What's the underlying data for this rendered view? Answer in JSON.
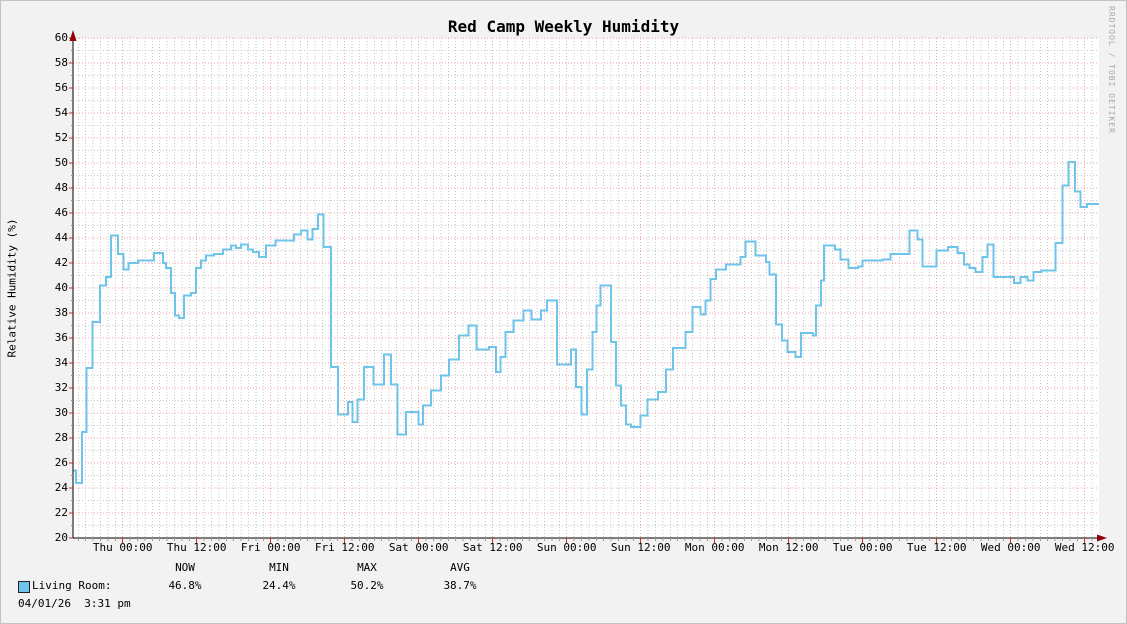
{
  "title": "Red Camp Weekly Humidity",
  "watermark": "RRDTOOL / TOBI OETIKER",
  "legend": {
    "headers": [
      "NOW",
      "MIN",
      "MAX",
      "AVG"
    ],
    "series_label": "Living Room:",
    "values": [
      "46.8%",
      "24.4%",
      "50.2%",
      "38.7%"
    ],
    "timestamp": "04/01/26  3:31 pm"
  },
  "colors": {
    "line": "#6fc4ec",
    "swatch": "#6fc4ec",
    "major_grid": "#f0a3a3",
    "minor_grid": "#c9c9c9",
    "axis": "#000000",
    "arrow": "#92000a",
    "plot_background": "#ffffff",
    "canvas_background": "#f2f2f2",
    "watermark_text": "#aaaaaa"
  },
  "chart_data": {
    "type": "line",
    "title": "Red Camp Weekly Humidity",
    "ylabel": "Relative Humidity (%)",
    "xlabel": "",
    "ylim": [
      20,
      60
    ],
    "y_major_step": 2,
    "y_minor_step": 1,
    "grid": true,
    "legend_position": "bottom",
    "x_tick_labels": [
      "Thu 00:00",
      "Thu 12:00",
      "Fri 00:00",
      "Fri 12:00",
      "Sat 00:00",
      "Sat 12:00",
      "Sun 00:00",
      "Sun 12:00",
      "Mon 00:00",
      "Mon 12:00",
      "Tue 00:00",
      "Tue 12:00",
      "Wed 00:00",
      "Wed 12:00"
    ],
    "x_tick_hours": [
      0,
      12,
      24,
      36,
      48,
      60,
      72,
      84,
      96,
      108,
      120,
      132,
      144,
      156
    ],
    "x_minor_step_hours": 1.2,
    "x_range_hours": [
      -8.1,
      158.3
    ],
    "stats": {
      "now": 46.8,
      "min": 24.4,
      "max": 50.2,
      "avg": 38.7
    },
    "series": [
      {
        "name": "Living Room",
        "unit": "%",
        "style": "step-after",
        "step_points": [
          [
            -8.1,
            25.4
          ],
          [
            -7.6,
            24.4
          ],
          [
            -6.6,
            28.5
          ],
          [
            -5.9,
            33.6
          ],
          [
            -4.9,
            37.3
          ],
          [
            -3.7,
            40.2
          ],
          [
            -2.7,
            40.9
          ],
          [
            -1.9,
            44.2
          ],
          [
            -0.8,
            42.7
          ],
          [
            0.1,
            41.5
          ],
          [
            0.9,
            42.0
          ],
          [
            2.5,
            42.2
          ],
          [
            5.1,
            42.8
          ],
          [
            6.5,
            42.0
          ],
          [
            7.0,
            41.6
          ],
          [
            7.8,
            39.6
          ],
          [
            8.5,
            37.8
          ],
          [
            9.1,
            37.6
          ],
          [
            9.9,
            39.4
          ],
          [
            11.1,
            39.6
          ],
          [
            11.9,
            41.6
          ],
          [
            12.7,
            42.2
          ],
          [
            13.5,
            42.6
          ],
          [
            14.8,
            42.7
          ],
          [
            16.3,
            43.1
          ],
          [
            17.6,
            43.4
          ],
          [
            18.4,
            43.2
          ],
          [
            19.2,
            43.5
          ],
          [
            20.3,
            43.1
          ],
          [
            21.1,
            42.9
          ],
          [
            22.1,
            42.5
          ],
          [
            23.2,
            43.4
          ],
          [
            24.8,
            43.8
          ],
          [
            27.8,
            44.3
          ],
          [
            28.9,
            44.6
          ],
          [
            30.0,
            43.9
          ],
          [
            30.8,
            44.7
          ],
          [
            31.7,
            45.9
          ],
          [
            32.6,
            43.3
          ],
          [
            33.8,
            33.7
          ],
          [
            34.9,
            29.9
          ],
          [
            36.5,
            30.9
          ],
          [
            37.3,
            29.3
          ],
          [
            38.1,
            31.1
          ],
          [
            39.1,
            33.7
          ],
          [
            40.7,
            32.3
          ],
          [
            42.4,
            34.7
          ],
          [
            43.5,
            32.3
          ],
          [
            44.6,
            28.3
          ],
          [
            45.9,
            30.1
          ],
          [
            48.0,
            29.1
          ],
          [
            48.7,
            30.6
          ],
          [
            50.0,
            31.8
          ],
          [
            51.6,
            33.0
          ],
          [
            52.9,
            34.3
          ],
          [
            54.5,
            36.2
          ],
          [
            56.1,
            37.0
          ],
          [
            57.4,
            35.1
          ],
          [
            59.4,
            35.3
          ],
          [
            60.5,
            33.3
          ],
          [
            61.3,
            34.5
          ],
          [
            62.1,
            36.5
          ],
          [
            63.4,
            37.4
          ],
          [
            65.0,
            38.2
          ],
          [
            66.3,
            37.5
          ],
          [
            67.8,
            38.2
          ],
          [
            68.8,
            39.0
          ],
          [
            70.4,
            33.9
          ],
          [
            72.7,
            35.1
          ],
          [
            73.5,
            32.1
          ],
          [
            74.4,
            29.9
          ],
          [
            75.3,
            33.5
          ],
          [
            76.2,
            36.5
          ],
          [
            76.8,
            38.6
          ],
          [
            77.5,
            40.2
          ],
          [
            79.2,
            35.7
          ],
          [
            80.0,
            32.2
          ],
          [
            80.8,
            30.6
          ],
          [
            81.6,
            29.1
          ],
          [
            82.4,
            28.9
          ],
          [
            84.0,
            29.8
          ],
          [
            85.1,
            31.1
          ],
          [
            86.8,
            31.7
          ],
          [
            88.1,
            33.5
          ],
          [
            89.2,
            35.2
          ],
          [
            91.3,
            36.5
          ],
          [
            92.4,
            38.5
          ],
          [
            93.7,
            37.9
          ],
          [
            94.5,
            39.0
          ],
          [
            95.3,
            40.7
          ],
          [
            96.2,
            41.5
          ],
          [
            97.8,
            41.9
          ],
          [
            100.2,
            42.5
          ],
          [
            101.0,
            43.7
          ],
          [
            102.6,
            42.6
          ],
          [
            104.3,
            42.1
          ],
          [
            104.9,
            41.1
          ],
          [
            105.9,
            37.1
          ],
          [
            106.9,
            35.8
          ],
          [
            107.8,
            34.9
          ],
          [
            109.1,
            34.5
          ],
          [
            110.0,
            36.4
          ],
          [
            111.9,
            36.2
          ],
          [
            112.4,
            38.6
          ],
          [
            113.2,
            40.6
          ],
          [
            113.7,
            43.4
          ],
          [
            115.5,
            43.1
          ],
          [
            116.4,
            42.3
          ],
          [
            117.7,
            41.6
          ],
          [
            119.2,
            41.7
          ],
          [
            120.0,
            42.2
          ],
          [
            123.2,
            42.3
          ],
          [
            124.5,
            42.7
          ],
          [
            127.6,
            44.6
          ],
          [
            128.9,
            43.9
          ],
          [
            129.7,
            41.7
          ],
          [
            132.0,
            43.0
          ],
          [
            133.8,
            43.3
          ],
          [
            135.4,
            42.8
          ],
          [
            136.4,
            41.9
          ],
          [
            137.3,
            41.6
          ],
          [
            138.3,
            41.3
          ],
          [
            139.4,
            42.5
          ],
          [
            140.2,
            43.5
          ],
          [
            141.2,
            40.9
          ],
          [
            144.5,
            40.4
          ],
          [
            145.6,
            40.9
          ],
          [
            146.7,
            40.6
          ],
          [
            147.7,
            41.3
          ],
          [
            149.0,
            41.4
          ],
          [
            151.3,
            43.6
          ],
          [
            152.4,
            48.2
          ],
          [
            153.4,
            50.1
          ],
          [
            154.4,
            47.7
          ],
          [
            155.3,
            46.5
          ],
          [
            156.4,
            46.7
          ]
        ]
      }
    ]
  }
}
